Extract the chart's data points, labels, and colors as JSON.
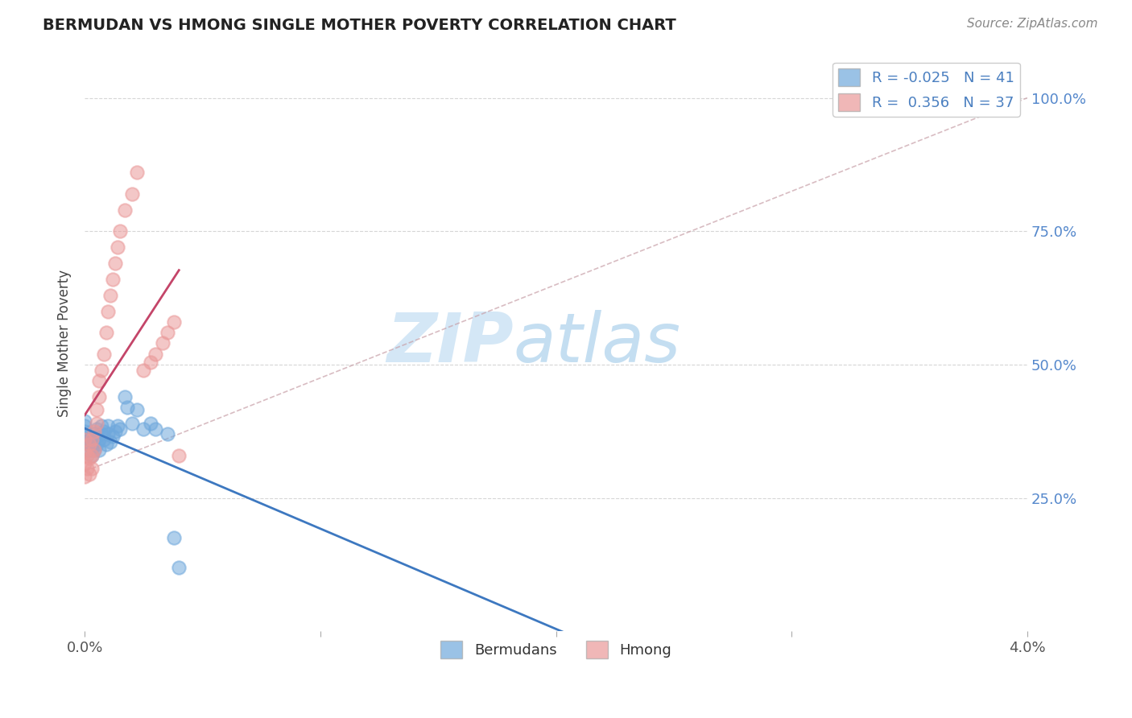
{
  "title": "BERMUDAN VS HMONG SINGLE MOTHER POVERTY CORRELATION CHART",
  "source": "Source: ZipAtlas.com",
  "ylabel": "Single Mother Poverty",
  "ytick_labels": [
    "25.0%",
    "50.0%",
    "75.0%",
    "100.0%"
  ],
  "ytick_values": [
    0.25,
    0.5,
    0.75,
    1.0
  ],
  "xlim": [
    0.0,
    0.04
  ],
  "ylim": [
    0.0,
    1.08
  ],
  "bermudan_R": -0.025,
  "bermudan_N": 41,
  "hmong_R": 0.356,
  "hmong_N": 37,
  "bermudan_color": "#6fa8dc",
  "hmong_color": "#ea9999",
  "trend_bermudan_color": "#3d78c0",
  "trend_hmong_color": "#c44569",
  "diagonal_color": "#c8a0a8",
  "watermark_zip": "ZIP",
  "watermark_atlas": "atlas",
  "bermudan_x": [
    0.0,
    0.0,
    0.0,
    0.0,
    0.0,
    0.0002,
    0.0002,
    0.0002,
    0.0003,
    0.0003,
    0.0003,
    0.0004,
    0.0004,
    0.0004,
    0.0005,
    0.0005,
    0.0005,
    0.0006,
    0.0006,
    0.0007,
    0.0007,
    0.0008,
    0.0008,
    0.0009,
    0.001,
    0.001,
    0.0011,
    0.0012,
    0.0013,
    0.0014,
    0.0015,
    0.0017,
    0.0018,
    0.002,
    0.0022,
    0.0025,
    0.0028,
    0.003,
    0.0035,
    0.0038,
    0.004
  ],
  "bermudan_y": [
    0.365,
    0.355,
    0.375,
    0.385,
    0.395,
    0.34,
    0.35,
    0.36,
    0.33,
    0.345,
    0.355,
    0.34,
    0.36,
    0.37,
    0.35,
    0.365,
    0.38,
    0.34,
    0.36,
    0.37,
    0.385,
    0.36,
    0.375,
    0.35,
    0.37,
    0.385,
    0.355,
    0.365,
    0.375,
    0.385,
    0.38,
    0.44,
    0.42,
    0.39,
    0.415,
    0.38,
    0.39,
    0.38,
    0.37,
    0.175,
    0.12
  ],
  "hmong_x": [
    0.0,
    0.0,
    0.0,
    0.0,
    0.0001,
    0.0001,
    0.0002,
    0.0002,
    0.0002,
    0.0003,
    0.0003,
    0.0003,
    0.0004,
    0.0004,
    0.0005,
    0.0005,
    0.0006,
    0.0006,
    0.0007,
    0.0008,
    0.0009,
    0.001,
    0.0011,
    0.0012,
    0.0013,
    0.0014,
    0.0015,
    0.0017,
    0.002,
    0.0022,
    0.0025,
    0.0028,
    0.003,
    0.0033,
    0.0035,
    0.0038,
    0.004
  ],
  "hmong_y": [
    0.29,
    0.315,
    0.335,
    0.36,
    0.305,
    0.33,
    0.295,
    0.325,
    0.35,
    0.305,
    0.33,
    0.36,
    0.34,
    0.375,
    0.39,
    0.415,
    0.44,
    0.47,
    0.49,
    0.52,
    0.56,
    0.6,
    0.63,
    0.66,
    0.69,
    0.72,
    0.75,
    0.79,
    0.82,
    0.86,
    0.49,
    0.505,
    0.52,
    0.54,
    0.56,
    0.58,
    0.33
  ]
}
